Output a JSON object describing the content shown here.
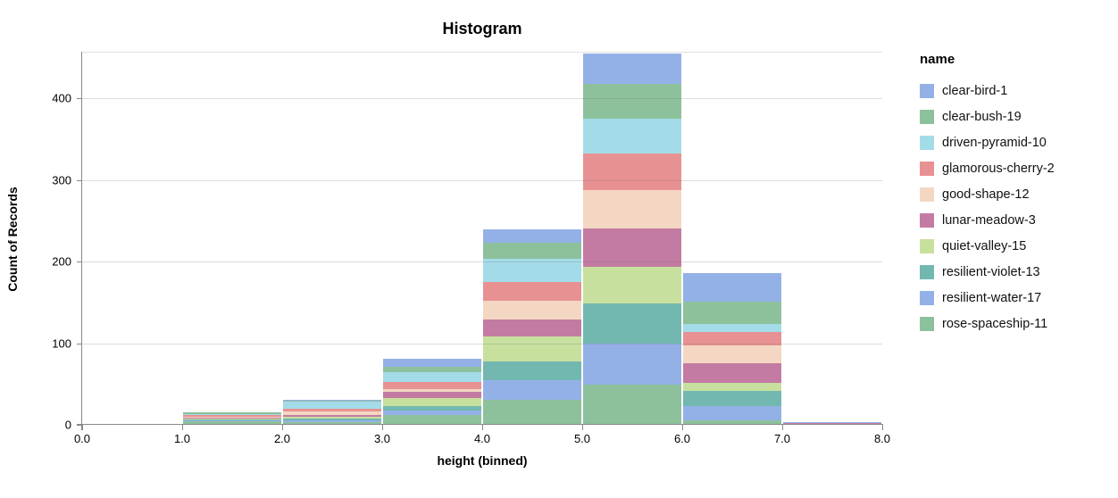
{
  "title": "Histogram",
  "axes": {
    "x": {
      "title": "height (binned)",
      "tick_labels": [
        "0.0",
        "1.0",
        "2.0",
        "3.0",
        "4.0",
        "5.0",
        "6.0",
        "7.0",
        "8.0"
      ]
    },
    "y": {
      "title": "Count of Records",
      "tick_values": [
        0,
        100,
        200,
        300,
        400
      ]
    }
  },
  "legend": {
    "title": "name"
  },
  "chart_data": {
    "type": "bar",
    "subtype": "stacked-histogram",
    "title": "Histogram",
    "xlabel": "height (binned)",
    "ylabel": "Count of Records",
    "xlim": [
      0,
      8
    ],
    "ylim": [
      0,
      457
    ],
    "grid": "horizontal-only",
    "legend_position": "right",
    "bin_edges": [
      0,
      1,
      2,
      3,
      4,
      5,
      6,
      7,
      8
    ],
    "stack_order": "reverse-legend (first legend entry on top)",
    "series": [
      {
        "name": "clear-bird-1",
        "color": "#94b1e7",
        "values": [
          0,
          0,
          1,
          10,
          16,
          37,
          35,
          1
        ]
      },
      {
        "name": "clear-bush-19",
        "color": "#8dc19c",
        "values": [
          0,
          2,
          1,
          7,
          20,
          43,
          27,
          0
        ]
      },
      {
        "name": "driven-pyramid-10",
        "color": "#a3dce8",
        "values": [
          0,
          1,
          9,
          12,
          28,
          43,
          10,
          0
        ]
      },
      {
        "name": "glamorous-cherry-2",
        "color": "#e89193",
        "values": [
          0,
          2,
          4,
          8,
          23,
          45,
          17,
          0
        ]
      },
      {
        "name": "good-shape-12",
        "color": "#f4d7c2",
        "values": [
          0,
          1,
          4,
          4,
          23,
          46,
          22,
          0
        ]
      },
      {
        "name": "lunar-meadow-3",
        "color": "#c47ba3",
        "values": [
          0,
          1,
          2,
          7,
          21,
          47,
          24,
          1
        ]
      },
      {
        "name": "quiet-valley-15",
        "color": "#c8e09e",
        "values": [
          1,
          1,
          2,
          10,
          30,
          45,
          10,
          0
        ]
      },
      {
        "name": "resilient-violet-13",
        "color": "#72b8b1",
        "values": [
          0,
          1,
          2,
          6,
          23,
          50,
          18,
          0
        ]
      },
      {
        "name": "resilient-water-17",
        "color": "#94b1e7",
        "values": [
          0,
          2,
          3,
          5,
          24,
          50,
          18,
          1
        ]
      },
      {
        "name": "rose-spaceship-11",
        "color": "#8dc19c",
        "values": [
          0,
          4,
          3,
          12,
          31,
          49,
          5,
          0
        ]
      }
    ],
    "bin_totals": [
      1,
      15,
      31,
      81,
      239,
      455,
      186,
      3
    ]
  },
  "style_colors": {
    "axis": "#888888",
    "gridline": "#dddddd",
    "text": "#000000"
  }
}
